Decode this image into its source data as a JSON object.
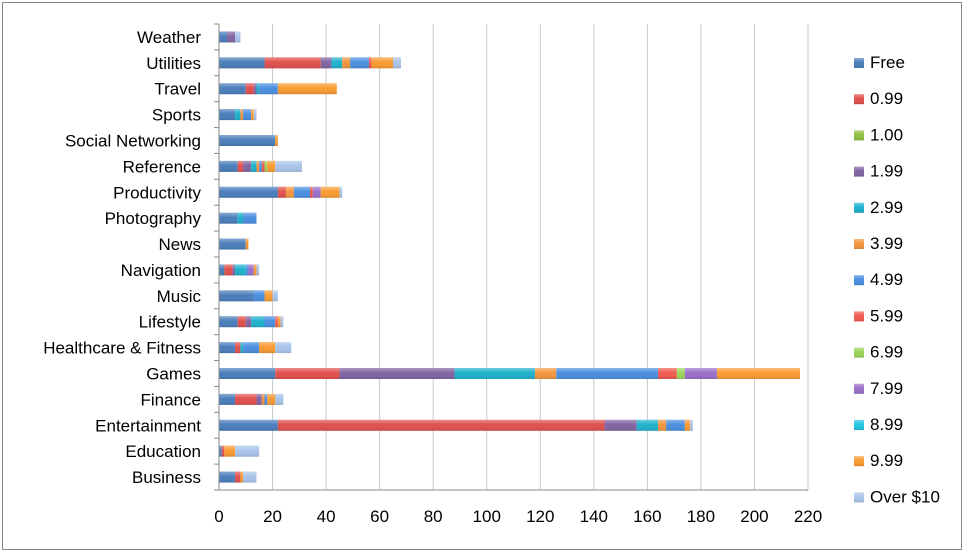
{
  "chart_data": {
    "type": "bar",
    "orientation": "horizontal",
    "stacked": true,
    "title": "",
    "xlabel": "",
    "ylabel": "",
    "xlim": [
      0,
      220
    ],
    "x_ticks": [
      "0",
      "20",
      "40",
      "60",
      "80",
      "100",
      "120",
      "140",
      "160",
      "180",
      "200",
      "220"
    ],
    "grid": "vertical",
    "legend_position": "right",
    "categories": [
      "Business",
      "Education",
      "Entertainment",
      "Finance",
      "Games",
      "Healthcare & Fitness",
      "Lifestyle",
      "Music",
      "Navigation",
      "News",
      "Photography",
      "Productivity",
      "Reference",
      "Social Networking",
      "Sports",
      "Travel",
      "Utilities",
      "Weather"
    ],
    "series": [
      {
        "name": "Free",
        "color": "#4a7ebb",
        "values": [
          6,
          1,
          22,
          6,
          21,
          6,
          7,
          13,
          2,
          10,
          7,
          22,
          7,
          21,
          6,
          10,
          17,
          3
        ]
      },
      {
        "name": "0.99",
        "color": "#e0504d",
        "values": [
          2,
          1,
          122,
          8,
          24,
          2,
          3,
          0,
          3,
          0,
          0,
          3,
          2,
          0,
          0,
          3,
          21,
          0
        ]
      },
      {
        "name": "1.00",
        "color": "#8fbf3f",
        "values": [
          0,
          0,
          0,
          0,
          0,
          0,
          0,
          0,
          0,
          0,
          0,
          0,
          0,
          0,
          0,
          0,
          0,
          0
        ]
      },
      {
        "name": "1.99",
        "color": "#8164a2",
        "values": [
          0,
          0,
          12,
          2,
          43,
          0,
          2,
          0,
          1,
          0,
          0,
          0,
          3,
          0,
          0,
          1,
          4,
          3
        ]
      },
      {
        "name": "2.99",
        "color": "#1fb1cc",
        "values": [
          0,
          0,
          8,
          0,
          30,
          1,
          5,
          0,
          4,
          0,
          2,
          0,
          2,
          0,
          2,
          1,
          4,
          0
        ]
      },
      {
        "name": "3.99",
        "color": "#f4953f",
        "values": [
          0,
          0,
          3,
          1,
          8,
          0,
          0,
          0,
          0,
          0,
          0,
          3,
          1,
          0,
          1,
          0,
          3,
          0
        ]
      },
      {
        "name": "4.99",
        "color": "#4a8fe0",
        "values": [
          0,
          0,
          7,
          1,
          38,
          6,
          4,
          4,
          1,
          0,
          5,
          6,
          1,
          0,
          3,
          7,
          7,
          0
        ]
      },
      {
        "name": "5.99",
        "color": "#f0594f",
        "values": [
          0,
          0,
          0,
          0,
          7,
          0,
          1,
          0,
          0,
          0,
          0,
          1,
          1,
          0,
          0,
          0,
          1,
          0
        ]
      },
      {
        "name": "6.99",
        "color": "#9cd35a",
        "values": [
          0,
          0,
          0,
          0,
          3,
          0,
          0,
          0,
          0,
          0,
          0,
          0,
          1,
          0,
          0,
          0,
          0,
          0
        ]
      },
      {
        "name": "7.99",
        "color": "#9a6fc9",
        "values": [
          0,
          0,
          0,
          0,
          12,
          0,
          0,
          0,
          2,
          0,
          0,
          3,
          0,
          0,
          0,
          0,
          0,
          0
        ]
      },
      {
        "name": "8.99",
        "color": "#21c5e0",
        "values": [
          0,
          0,
          0,
          0,
          0,
          0,
          0,
          0,
          0,
          0,
          0,
          0,
          0,
          0,
          0,
          0,
          0,
          0
        ]
      },
      {
        "name": "9.99",
        "color": "#f99b32",
        "values": [
          1,
          4,
          2,
          3,
          31,
          6,
          1,
          3,
          1,
          1,
          0,
          7,
          3,
          1,
          1,
          22,
          8,
          0
        ]
      },
      {
        "name": "Over $10",
        "color": "#a9c4ea",
        "values": [
          5,
          9,
          1,
          3,
          0,
          6,
          1,
          2,
          1,
          0,
          0,
          1,
          10,
          0,
          1,
          0,
          3,
          2
        ]
      }
    ]
  }
}
